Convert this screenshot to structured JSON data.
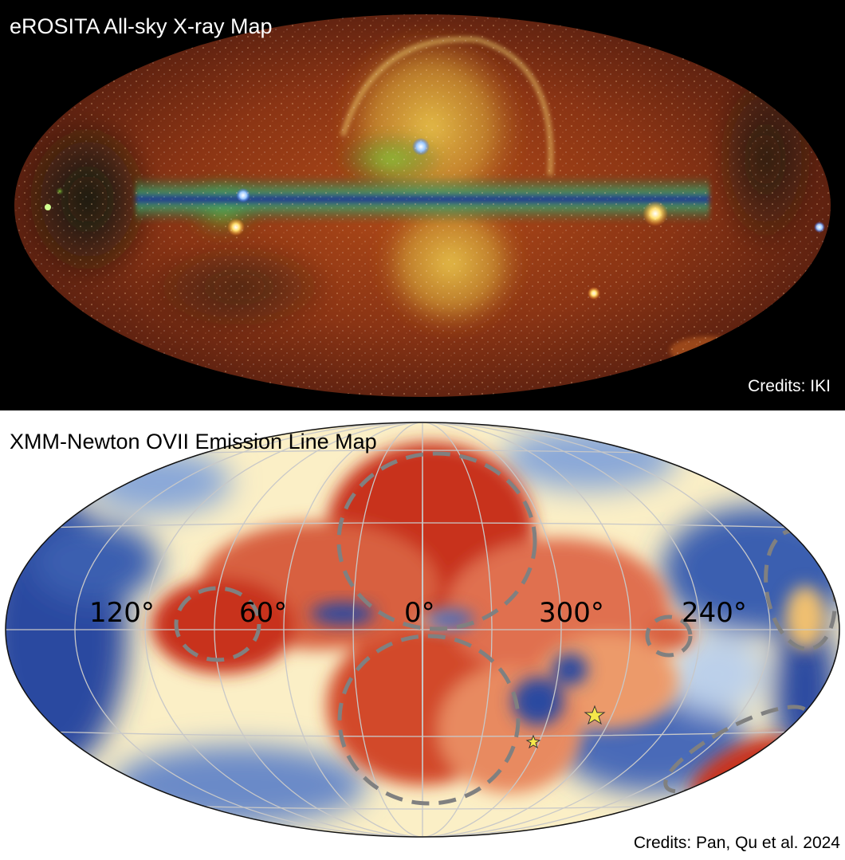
{
  "top_panel": {
    "title": "eROSITA All-sky X-ray Map",
    "credit": "Credits: IKI"
  },
  "bottom_panel": {
    "title": "XMM-Newton OVII Emission Line Map",
    "credit": "Credits: Pan, Qu et al. 2024",
    "longitude_labels": [
      "120°",
      "60°",
      "0°",
      "300°",
      "240°"
    ]
  },
  "colors": {
    "xray_background": "#000000",
    "xray_red": "#8a2e12",
    "xray_yellow": "#e6c23a",
    "xray_plane_blue": "#1a2a9a",
    "ovii_red": "#c8321e",
    "ovii_blue": "#2a4aa0",
    "ovii_pale": "#fbefc6",
    "region_outline": "#808080",
    "star": "#f6e84a"
  }
}
